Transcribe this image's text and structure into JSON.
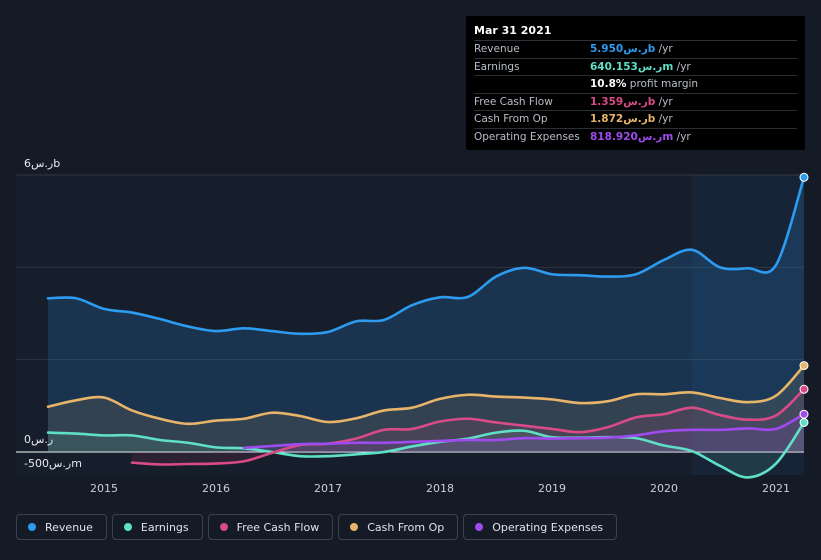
{
  "chart_data": {
    "type": "area",
    "y_unit_labels": {
      "top": "6ر.سb",
      "zero": "0ر.س",
      "bottom": "-500ر.سm"
    },
    "ylim": [
      -800,
      6000
    ],
    "xlim": [
      2014.5,
      2021.25
    ],
    "forecast_start": 2020.25,
    "x_ticks": [
      "2015",
      "2016",
      "2017",
      "2018",
      "2019",
      "2020",
      "2021"
    ],
    "x_tick_values": [
      2015,
      2016,
      2017,
      2018,
      2019,
      2020,
      2021
    ],
    "series": [
      {
        "name": "Revenue",
        "color": "#2d9bf0",
        "points": [
          [
            2014.5,
            3330
          ],
          [
            2014.75,
            3330
          ],
          [
            2015,
            3100
          ],
          [
            2015.25,
            3020
          ],
          [
            2015.5,
            2880
          ],
          [
            2015.75,
            2720
          ],
          [
            2016,
            2620
          ],
          [
            2016.25,
            2680
          ],
          [
            2016.5,
            2620
          ],
          [
            2016.75,
            2560
          ],
          [
            2017,
            2600
          ],
          [
            2017.25,
            2830
          ],
          [
            2017.5,
            2860
          ],
          [
            2017.75,
            3180
          ],
          [
            2018,
            3350
          ],
          [
            2018.25,
            3360
          ],
          [
            2018.5,
            3800
          ],
          [
            2018.75,
            3990
          ],
          [
            2019,
            3850
          ],
          [
            2019.25,
            3830
          ],
          [
            2019.5,
            3800
          ],
          [
            2019.75,
            3850
          ],
          [
            2020,
            4160
          ],
          [
            2020.25,
            4380
          ],
          [
            2020.5,
            4000
          ],
          [
            2020.75,
            3980
          ],
          [
            2021,
            4050
          ],
          [
            2021.25,
            5950
          ]
        ]
      },
      {
        "name": "Earnings",
        "color": "#5fe0c6",
        "points": [
          [
            2014.5,
            420
          ],
          [
            2014.75,
            400
          ],
          [
            2015,
            360
          ],
          [
            2015.25,
            360
          ],
          [
            2015.5,
            260
          ],
          [
            2015.75,
            200
          ],
          [
            2016,
            100
          ],
          [
            2016.25,
            80
          ],
          [
            2016.5,
            0
          ],
          [
            2016.75,
            -90
          ],
          [
            2017,
            -90
          ],
          [
            2017.25,
            -50
          ],
          [
            2017.5,
            0
          ],
          [
            2017.75,
            120
          ],
          [
            2018,
            220
          ],
          [
            2018.25,
            290
          ],
          [
            2018.5,
            420
          ],
          [
            2018.75,
            460
          ],
          [
            2019,
            320
          ],
          [
            2019.25,
            310
          ],
          [
            2019.5,
            320
          ],
          [
            2019.75,
            300
          ],
          [
            2020,
            140
          ],
          [
            2020.25,
            20
          ],
          [
            2020.5,
            -300
          ],
          [
            2020.75,
            -550
          ],
          [
            2021,
            -250
          ],
          [
            2021.25,
            640
          ]
        ]
      },
      {
        "name": "Free Cash Flow",
        "color": "#d94b87",
        "points": [
          [
            2015.25,
            -230
          ],
          [
            2015.5,
            -270
          ],
          [
            2015.75,
            -260
          ],
          [
            2016,
            -250
          ],
          [
            2016.25,
            -200
          ],
          [
            2016.5,
            -20
          ],
          [
            2016.75,
            150
          ],
          [
            2017,
            180
          ],
          [
            2017.25,
            290
          ],
          [
            2017.5,
            480
          ],
          [
            2017.75,
            500
          ],
          [
            2018,
            660
          ],
          [
            2018.25,
            720
          ],
          [
            2018.5,
            640
          ],
          [
            2018.75,
            570
          ],
          [
            2019,
            500
          ],
          [
            2019.25,
            430
          ],
          [
            2019.5,
            540
          ],
          [
            2019.75,
            750
          ],
          [
            2020,
            820
          ],
          [
            2020.25,
            960
          ],
          [
            2020.5,
            800
          ],
          [
            2020.75,
            700
          ],
          [
            2021,
            790
          ],
          [
            2021.25,
            1359
          ]
        ]
      },
      {
        "name": "Cash From Op",
        "color": "#e8b46a",
        "points": [
          [
            2014.5,
            980
          ],
          [
            2014.75,
            1120
          ],
          [
            2015,
            1180
          ],
          [
            2015.25,
            900
          ],
          [
            2015.5,
            720
          ],
          [
            2015.75,
            610
          ],
          [
            2016,
            680
          ],
          [
            2016.25,
            720
          ],
          [
            2016.5,
            850
          ],
          [
            2016.75,
            780
          ],
          [
            2017,
            650
          ],
          [
            2017.25,
            730
          ],
          [
            2017.5,
            900
          ],
          [
            2017.75,
            960
          ],
          [
            2018,
            1150
          ],
          [
            2018.25,
            1240
          ],
          [
            2018.5,
            1200
          ],
          [
            2018.75,
            1180
          ],
          [
            2019,
            1140
          ],
          [
            2019.25,
            1060
          ],
          [
            2019.5,
            1100
          ],
          [
            2019.75,
            1250
          ],
          [
            2020,
            1250
          ],
          [
            2020.25,
            1290
          ],
          [
            2020.5,
            1170
          ],
          [
            2020.75,
            1080
          ],
          [
            2021,
            1220
          ],
          [
            2021.25,
            1872
          ]
        ]
      },
      {
        "name": "Operating Expenses",
        "color": "#a04bef",
        "points": [
          [
            2016.25,
            90
          ],
          [
            2016.5,
            130
          ],
          [
            2016.75,
            170
          ],
          [
            2017,
            180
          ],
          [
            2017.25,
            200
          ],
          [
            2017.5,
            200
          ],
          [
            2017.75,
            220
          ],
          [
            2018,
            240
          ],
          [
            2018.25,
            260
          ],
          [
            2018.5,
            260
          ],
          [
            2018.75,
            300
          ],
          [
            2019,
            290
          ],
          [
            2019.25,
            300
          ],
          [
            2019.5,
            310
          ],
          [
            2019.75,
            360
          ],
          [
            2020,
            450
          ],
          [
            2020.25,
            480
          ],
          [
            2020.5,
            480
          ],
          [
            2020.75,
            510
          ],
          [
            2021,
            500
          ],
          [
            2021.25,
            819
          ]
        ]
      }
    ],
    "legend_position": "bottom-left"
  },
  "tooltip": {
    "date": "Mar 31 2021",
    "rows": [
      {
        "label": "Revenue",
        "value": "5.950ر.سb",
        "unit": " /yr",
        "color": "#2d9bf0"
      },
      {
        "label": "Earnings",
        "value": "640.153ر.سm",
        "unit": " /yr",
        "color": "#5fe0c6"
      },
      {
        "label": "",
        "value": "10.8%",
        "unit": " profit margin",
        "color": "#ffffff"
      },
      {
        "label": "Free Cash Flow",
        "value": "1.359ر.سb",
        "unit": " /yr",
        "color": "#d94b87"
      },
      {
        "label": "Cash From Op",
        "value": "1.872ر.سb",
        "unit": " /yr",
        "color": "#e8b46a"
      },
      {
        "label": "Operating Expenses",
        "value": "818.920ر.سm",
        "unit": " /yr",
        "color": "#a04bef"
      }
    ]
  },
  "legend": [
    {
      "label": "Revenue",
      "color": "#2d9bf0"
    },
    {
      "label": "Earnings",
      "color": "#5fe0c6"
    },
    {
      "label": "Free Cash Flow",
      "color": "#d94b87"
    },
    {
      "label": "Cash From Op",
      "color": "#e8b46a"
    },
    {
      "label": "Operating Expenses",
      "color": "#a04bef"
    }
  ]
}
